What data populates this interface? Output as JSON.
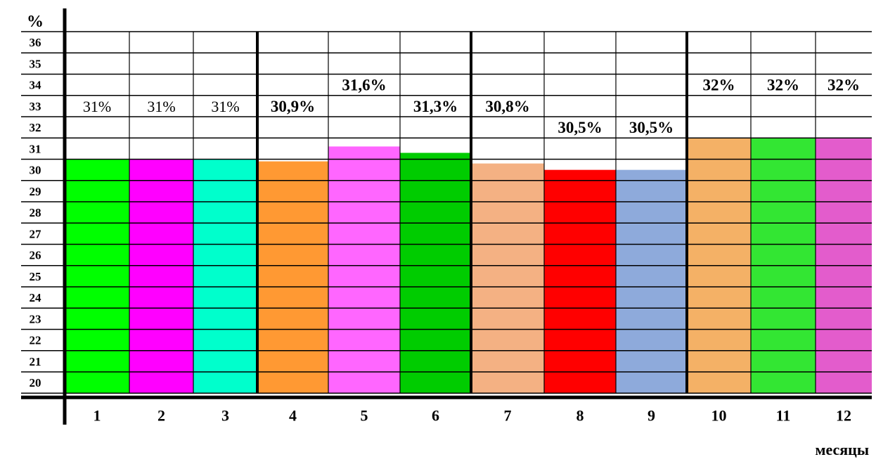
{
  "chart_data": {
    "type": "bar",
    "y_unit_label": "%",
    "xlabel": "месяцы",
    "ylabel": "",
    "title": "",
    "ylim": [
      20,
      36
    ],
    "y_ticks": [
      36,
      35,
      34,
      33,
      32,
      31,
      30,
      29,
      28,
      27,
      26,
      25,
      24,
      23,
      22,
      21,
      20
    ],
    "grid": true,
    "categories": [
      "1",
      "2",
      "3",
      "4",
      "5",
      "6",
      "7",
      "8",
      "9",
      "10",
      "11",
      "12"
    ],
    "values": [
      31,
      31,
      31,
      30.9,
      31.6,
      31.3,
      30.8,
      30.5,
      30.5,
      32,
      32,
      32
    ],
    "data_labels": [
      "31%",
      "31%",
      "31%",
      "30,9%",
      "31,6%",
      "31,3%",
      "30,8%",
      "30,5%",
      "30,5%",
      "32%",
      "32%",
      "32%"
    ],
    "label_row": [
      33,
      33,
      33,
      33,
      34,
      33,
      33,
      32,
      32,
      34,
      34,
      34
    ],
    "label_bold": [
      false,
      false,
      false,
      true,
      true,
      true,
      true,
      true,
      true,
      true,
      true,
      true
    ],
    "colors": [
      "#00ff00",
      "#ff00ff",
      "#00ffcc",
      "#ff9933",
      "#ff66ff",
      "#00cc00",
      "#f4b183",
      "#ff0000",
      "#8eaadb",
      "#f4b166",
      "#33e633",
      "#e35ccc"
    ]
  }
}
